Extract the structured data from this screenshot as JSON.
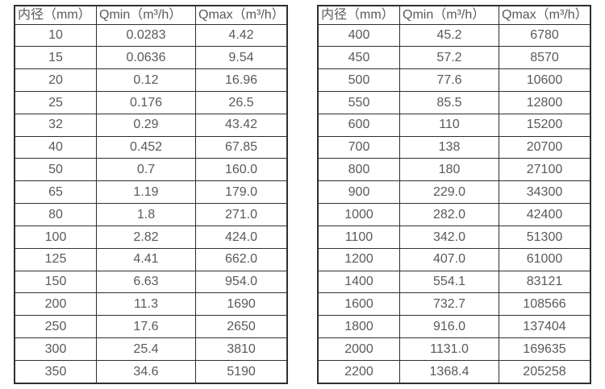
{
  "page": {
    "background": "#ffffff",
    "text_color": "#595959",
    "border_color": "#2f2f2f"
  },
  "tables": [
    {
      "name": "flow-range-table-small-diameters",
      "headers": [
        "内径（mm）",
        "Qmin（m³/h）",
        "Qmax（m³/h）"
      ],
      "rows": [
        [
          "10",
          "0.0283",
          "4.42"
        ],
        [
          "15",
          "0.0636",
          "9.54"
        ],
        [
          "20",
          "0.12",
          "16.96"
        ],
        [
          "25",
          "0.176",
          "26.5"
        ],
        [
          "32",
          "0.29",
          "43.42"
        ],
        [
          "40",
          "0.452",
          "67.85"
        ],
        [
          "50",
          "0.7",
          "160.0"
        ],
        [
          "65",
          "1.19",
          "179.0"
        ],
        [
          "80",
          "1.8",
          "271.0"
        ],
        [
          "100",
          "2.82",
          "424.0"
        ],
        [
          "125",
          "4.41",
          "662.0"
        ],
        [
          "150",
          "6.63",
          "954.0"
        ],
        [
          "200",
          "11.3",
          "1690"
        ],
        [
          "250",
          "17.6",
          "2650"
        ],
        [
          "300",
          "25.4",
          "3810"
        ],
        [
          "350",
          "34.6",
          "5190"
        ]
      ]
    },
    {
      "name": "flow-range-table-large-diameters",
      "headers": [
        "内径（mm）",
        "Qmin（m³/h）",
        "Qmax（m³/h）"
      ],
      "rows": [
        [
          "400",
          "45.2",
          "6780"
        ],
        [
          "450",
          "57.2",
          "8570"
        ],
        [
          "500",
          "77.6",
          "10600"
        ],
        [
          "550",
          "85.5",
          "12800"
        ],
        [
          "600",
          "110",
          "15200"
        ],
        [
          "700",
          "138",
          "20700"
        ],
        [
          "800",
          "180",
          "27100"
        ],
        [
          "900",
          "229.0",
          "34300"
        ],
        [
          "1000",
          "282.0",
          "42400"
        ],
        [
          "1100",
          "342.0",
          "51300"
        ],
        [
          "1200",
          "407.0",
          "61000"
        ],
        [
          "1400",
          "554.1",
          "83121"
        ],
        [
          "1600",
          "732.7",
          "108566"
        ],
        [
          "1800",
          "916.0",
          "137404"
        ],
        [
          "2000",
          "1131.0",
          "169635"
        ],
        [
          "2200",
          "1368.4",
          "205258"
        ]
      ]
    }
  ]
}
